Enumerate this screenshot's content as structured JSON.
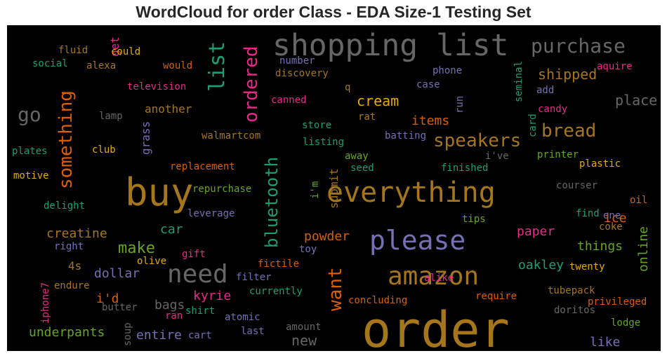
{
  "chart_data": {
    "type": "wordcloud",
    "title": "WordCloud for order Class - EDA Size-1 Testing Set",
    "background": "#000000",
    "colormap": "Dark2",
    "words": [
      {
        "text": "shopping list",
        "weight": 1.0,
        "color": "#666666"
      },
      {
        "text": "order",
        "weight": 1.0,
        "color": "#a6761d"
      },
      {
        "text": "buy",
        "weight": 0.9,
        "color": "#a6761d"
      },
      {
        "text": "everything",
        "weight": 0.85,
        "color": "#a6761d"
      },
      {
        "text": "please",
        "weight": 0.75,
        "color": "#7570b3"
      },
      {
        "text": "amazon",
        "weight": 0.75,
        "color": "#a6761d"
      },
      {
        "text": "need",
        "weight": 0.7,
        "color": "#666666"
      },
      {
        "text": "purchase",
        "weight": 0.6,
        "color": "#666666"
      },
      {
        "text": "list",
        "weight": 0.6,
        "color": "#1b9e77"
      },
      {
        "text": "ordered",
        "weight": 0.6,
        "color": "#e7298a"
      },
      {
        "text": "something",
        "weight": 0.6,
        "color": "#d95f02"
      },
      {
        "text": "speakers",
        "weight": 0.6,
        "color": "#a6761d"
      },
      {
        "text": "bread",
        "weight": 0.55,
        "color": "#a6761d"
      },
      {
        "text": "bluetooth",
        "weight": 0.55,
        "color": "#1b9e77"
      },
      {
        "text": "want",
        "weight": 0.55,
        "color": "#d95f02"
      },
      {
        "text": "go",
        "weight": 0.55,
        "color": "#666666"
      },
      {
        "text": "make",
        "weight": 0.45,
        "color": "#66a61e"
      },
      {
        "text": "shipped",
        "weight": 0.4,
        "color": "#a6761d"
      },
      {
        "text": "place",
        "weight": 0.4,
        "color": "#666666"
      },
      {
        "text": "shopping",
        "weight": 0.4,
        "color": "#a6761d"
      },
      {
        "text": "cream",
        "weight": 0.4,
        "color": "#e6ab02"
      },
      {
        "text": "items",
        "weight": 0.4,
        "color": "#d95f02"
      },
      {
        "text": "creatine",
        "weight": 0.4,
        "color": "#a6761d"
      },
      {
        "text": "car",
        "weight": 0.4,
        "color": "#1b9e77"
      },
      {
        "text": "powder",
        "weight": 0.4,
        "color": "#d95f02"
      },
      {
        "text": "paper",
        "weight": 0.4,
        "color": "#e7298a"
      },
      {
        "text": "things",
        "weight": 0.4,
        "color": "#66a61e"
      },
      {
        "text": "online",
        "weight": 0.4,
        "color": "#66a61e"
      },
      {
        "text": "oakley",
        "weight": 0.4,
        "color": "#1b9e77"
      },
      {
        "text": "dollar",
        "weight": 0.4,
        "color": "#7570b3"
      },
      {
        "text": "i'd",
        "weight": 0.4,
        "color": "#d95f02"
      },
      {
        "text": "kyrie",
        "weight": 0.4,
        "color": "#e7298a"
      },
      {
        "text": "new",
        "weight": 0.4,
        "color": "#666666"
      },
      {
        "text": "bags",
        "weight": 0.35,
        "color": "#666666"
      },
      {
        "text": "entire",
        "weight": 0.35,
        "color": "#7570b3"
      },
      {
        "text": "underpants",
        "weight": 0.35,
        "color": "#66a61e"
      },
      {
        "text": "ice",
        "weight": 0.35,
        "color": "#d95f02"
      },
      {
        "text": "like",
        "weight": 0.35,
        "color": "#7570b3"
      },
      {
        "text": "4s",
        "weight": 0.35,
        "color": "#a6761d"
      },
      {
        "text": "another",
        "weight": 0.35,
        "color": "#a6761d"
      },
      {
        "text": "grass",
        "weight": 0.3,
        "color": "#7570b3"
      },
      {
        "text": "submit",
        "weight": 0.3,
        "color": "#a6761d"
      },
      {
        "text": "get",
        "weight": 0.3,
        "color": "#e7298a"
      },
      {
        "text": "could",
        "weight": 0.3,
        "color": "#e6ab02"
      },
      {
        "text": "fluid",
        "weight": 0.3,
        "color": "#a6761d"
      },
      {
        "text": "social",
        "weight": 0.3,
        "color": "#1b9e77"
      },
      {
        "text": "alexa",
        "weight": 0.3,
        "color": "#a6761d"
      },
      {
        "text": "would",
        "weight": 0.3,
        "color": "#d95f02"
      },
      {
        "text": "television",
        "weight": 0.3,
        "color": "#e7298a"
      },
      {
        "text": "lamp",
        "weight": 0.3,
        "color": "#666666"
      },
      {
        "text": "plates",
        "weight": 0.3,
        "color": "#1b9e77"
      },
      {
        "text": "club",
        "weight": 0.3,
        "color": "#e6ab02"
      },
      {
        "text": "motive",
        "weight": 0.3,
        "color": "#e6ab02"
      },
      {
        "text": "delight",
        "weight": 0.3,
        "color": "#1b9e77"
      },
      {
        "text": "right",
        "weight": 0.3,
        "color": "#7570b3"
      },
      {
        "text": "olive",
        "weight": 0.3,
        "color": "#e6ab02"
      },
      {
        "text": "endure",
        "weight": 0.3,
        "color": "#a6761d"
      },
      {
        "text": "iphone7",
        "weight": 0.3,
        "color": "#e7298a"
      },
      {
        "text": "butter",
        "weight": 0.3,
        "color": "#666666"
      },
      {
        "text": "soup",
        "weight": 0.3,
        "color": "#666666"
      },
      {
        "text": "number",
        "weight": 0.3,
        "color": "#7570b3"
      },
      {
        "text": "discovery",
        "weight": 0.3,
        "color": "#a6761d"
      },
      {
        "text": "canned",
        "weight": 0.3,
        "color": "#e7298a"
      },
      {
        "text": "q",
        "weight": 0.3,
        "color": "#a6761d"
      },
      {
        "text": "rat",
        "weight": 0.3,
        "color": "#a6761d"
      },
      {
        "text": "store",
        "weight": 0.3,
        "color": "#1b9e77"
      },
      {
        "text": "walmartcom",
        "weight": 0.3,
        "color": "#a6761d"
      },
      {
        "text": "listing",
        "weight": 0.3,
        "color": "#1b9e77"
      },
      {
        "text": "batting",
        "weight": 0.3,
        "color": "#7570b3"
      },
      {
        "text": "away",
        "weight": 0.3,
        "color": "#66a61e"
      },
      {
        "text": "seed",
        "weight": 0.3,
        "color": "#1b9e77"
      },
      {
        "text": "replacement",
        "weight": 0.3,
        "color": "#d95f02"
      },
      {
        "text": "repurchase",
        "weight": 0.3,
        "color": "#66a61e"
      },
      {
        "text": "i'm",
        "weight": 0.3,
        "color": "#66a61e"
      },
      {
        "text": "leverage",
        "weight": 0.3,
        "color": "#7570b3"
      },
      {
        "text": "gift",
        "weight": 0.3,
        "color": "#e7298a"
      },
      {
        "text": "toy",
        "weight": 0.3,
        "color": "#7570b3"
      },
      {
        "text": "fictile",
        "weight": 0.3,
        "color": "#d95f02"
      },
      {
        "text": "filter",
        "weight": 0.3,
        "color": "#7570b3"
      },
      {
        "text": "alike",
        "weight": 0.3,
        "color": "#e7298a"
      },
      {
        "text": "currently",
        "weight": 0.3,
        "color": "#1b9e77"
      },
      {
        "text": "concluding",
        "weight": 0.3,
        "color": "#d95f02"
      },
      {
        "text": "require",
        "weight": 0.3,
        "color": "#d95f02"
      },
      {
        "text": "shirt",
        "weight": 0.3,
        "color": "#1b9e77"
      },
      {
        "text": "ran",
        "weight": 0.3,
        "color": "#e7298a"
      },
      {
        "text": "atomic",
        "weight": 0.3,
        "color": "#7570b3"
      },
      {
        "text": "cart",
        "weight": 0.3,
        "color": "#7570b3"
      },
      {
        "text": "last",
        "weight": 0.3,
        "color": "#7570b3"
      },
      {
        "text": "amount",
        "weight": 0.3,
        "color": "#666666"
      },
      {
        "text": "phone",
        "weight": 0.3,
        "color": "#7570b3"
      },
      {
        "text": "case",
        "weight": 0.3,
        "color": "#7570b3"
      },
      {
        "text": "run",
        "weight": 0.3,
        "color": "#7570b3"
      },
      {
        "text": "seminal",
        "weight": 0.3,
        "color": "#1b9e77"
      },
      {
        "text": "card",
        "weight": 0.3,
        "color": "#1b9e77"
      },
      {
        "text": "aquire",
        "weight": 0.3,
        "color": "#e7298a"
      },
      {
        "text": "add",
        "weight": 0.3,
        "color": "#7570b3"
      },
      {
        "text": "candy",
        "weight": 0.3,
        "color": "#e7298a"
      },
      {
        "text": "i've",
        "weight": 0.3,
        "color": "#666666"
      },
      {
        "text": "finished",
        "weight": 0.3,
        "color": "#1b9e77"
      },
      {
        "text": "printer",
        "weight": 0.3,
        "color": "#66a61e"
      },
      {
        "text": "plastic",
        "weight": 0.3,
        "color": "#e6ab02"
      },
      {
        "text": "courser",
        "weight": 0.3,
        "color": "#666666"
      },
      {
        "text": "oil",
        "weight": 0.3,
        "color": "#d95f02"
      },
      {
        "text": "find",
        "weight": 0.3,
        "color": "#1b9e77"
      },
      {
        "text": "one",
        "weight": 0.3,
        "color": "#7570b3"
      },
      {
        "text": "coke",
        "weight": 0.3,
        "color": "#a6761d"
      },
      {
        "text": "tips",
        "weight": 0.3,
        "color": "#66a61e"
      },
      {
        "text": "twenty",
        "weight": 0.3,
        "color": "#e6ab02"
      },
      {
        "text": "tubepack",
        "weight": 0.3,
        "color": "#a6761d"
      },
      {
        "text": "privileged",
        "weight": 0.3,
        "color": "#d95f02"
      },
      {
        "text": "doritos",
        "weight": 0.3,
        "color": "#666666"
      },
      {
        "text": "lodge",
        "weight": 0.3,
        "color": "#66a61e"
      }
    ]
  }
}
